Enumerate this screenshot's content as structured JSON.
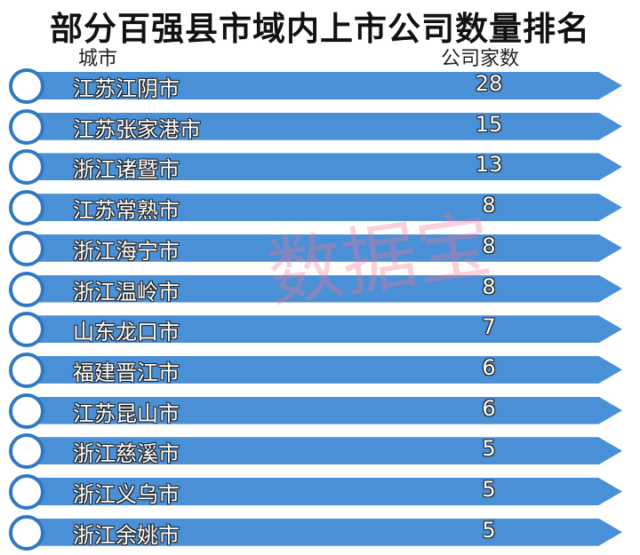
{
  "title": "部分百强县市域内上市公司数量排名",
  "watermark": "数据宝",
  "colors": {
    "bar": "#4a90d6",
    "circle_border": "#2f79c4",
    "watermark": "#f07896"
  },
  "chart_data": {
    "type": "table",
    "title": "部分百强县市域内上市公司数量排名",
    "columns": [
      "城市",
      "公司家数"
    ],
    "rows": [
      {
        "city": "江苏江阴市",
        "count": 28
      },
      {
        "city": "江苏张家港市",
        "count": 15
      },
      {
        "city": "浙江诸暨市",
        "count": 13
      },
      {
        "city": "江苏常熟市",
        "count": 8
      },
      {
        "city": "浙江海宁市",
        "count": 8
      },
      {
        "city": "浙江温岭市",
        "count": 8
      },
      {
        "city": "山东龙口市",
        "count": 7
      },
      {
        "city": "福建晋江市",
        "count": 6
      },
      {
        "city": "江苏昆山市",
        "count": 6
      },
      {
        "city": "浙江慈溪市",
        "count": 5
      },
      {
        "city": "浙江义乌市",
        "count": 5
      },
      {
        "city": "浙江余姚市",
        "count": 5
      }
    ]
  }
}
